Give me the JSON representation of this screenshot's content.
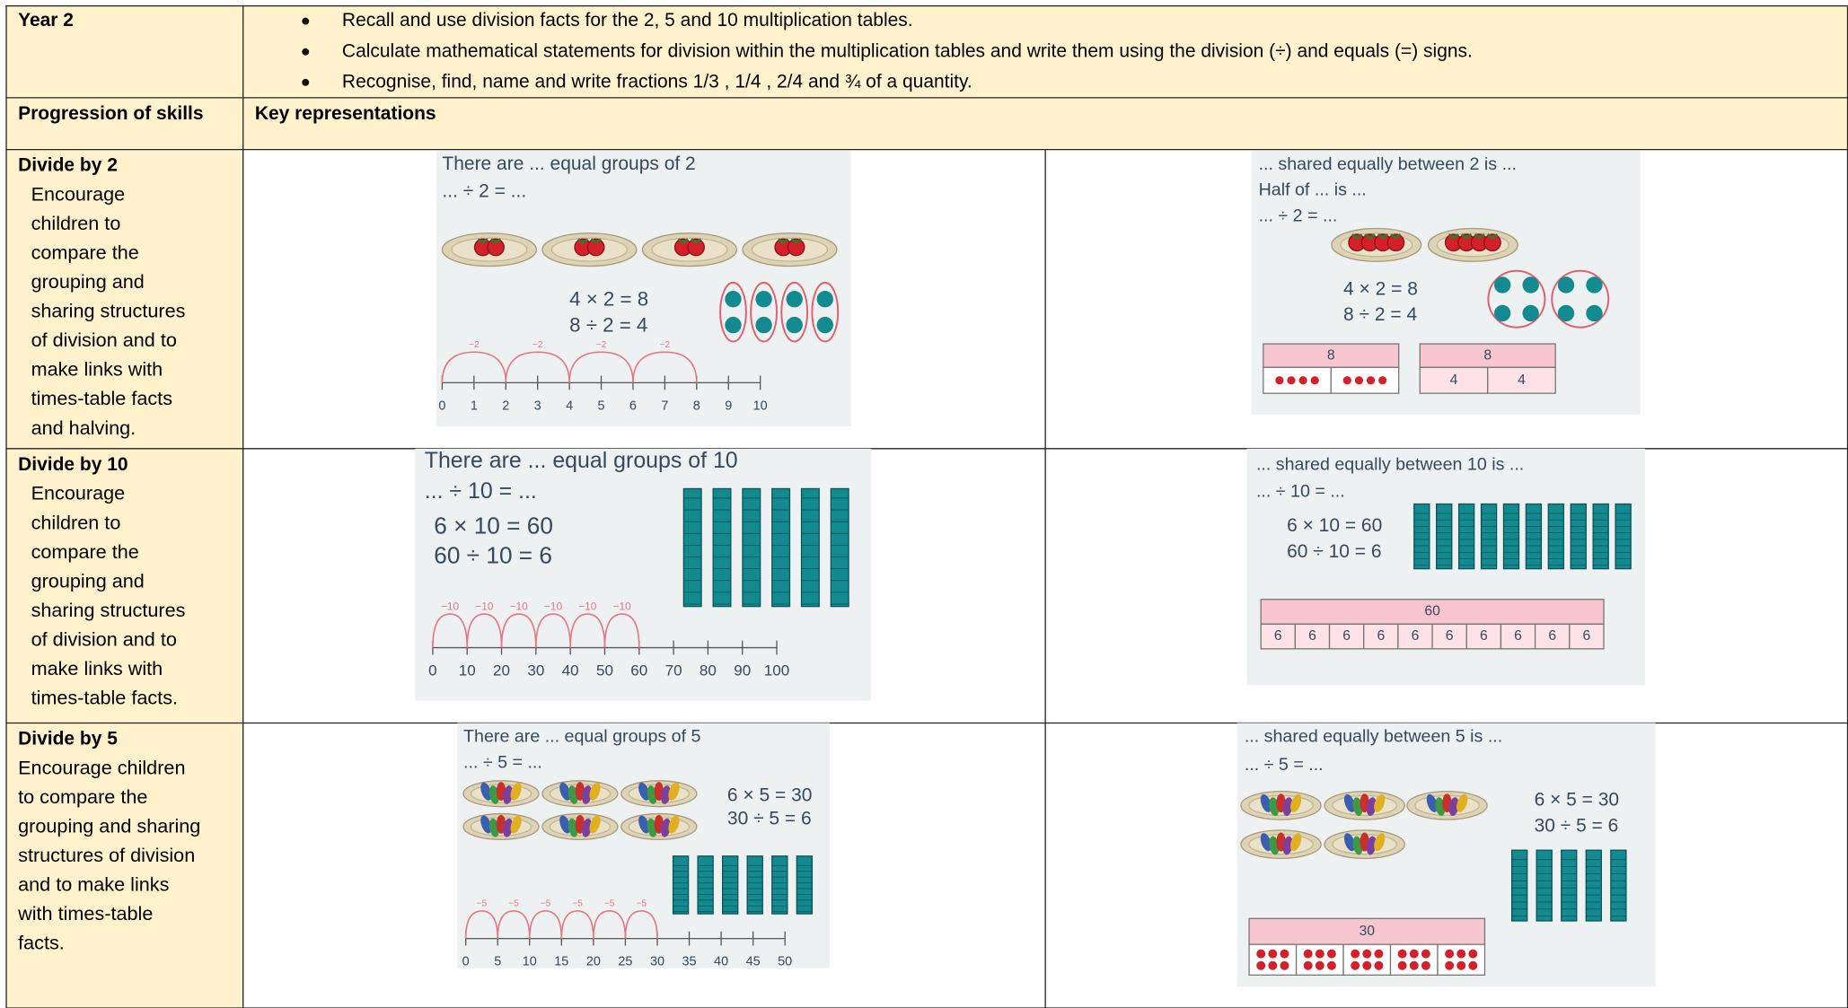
{
  "header": {
    "year": "Year 2",
    "objectives": [
      "Recall and use division facts for the 2, 5 and 10 multiplication tables.",
      "Calculate mathematical statements for division within the multiplication tables and write them using the division (÷) and equals (=) signs.",
      "Recognise, find, name and write fractions 1/3 , 1/4 , 2/4 and ¾ of a quantity."
    ]
  },
  "progression_header": {
    "skills": "Progression of skills",
    "representations": "Key representations"
  },
  "rows": [
    {
      "title": "Divide by 2",
      "text_lines": [
        "Encourage",
        "children to",
        "compare the",
        "grouping and",
        "sharing structures",
        "of division and to",
        "make links with",
        "times-table facts",
        "and halving."
      ],
      "grouping": {
        "lines": [
          "There are ... equal groups of 2",
          "... ÷ 2 = ..."
        ],
        "facts": [
          "4 × 2 = 8",
          "8 ÷ 2 = 4"
        ],
        "number_line": {
          "labels": [
            "0",
            "1",
            "2",
            "3",
            "4",
            "5",
            "6",
            "7",
            "8",
            "9",
            "10"
          ],
          "jumps": [
            "−2",
            "−2",
            "−2",
            "−2"
          ]
        }
      },
      "sharing": {
        "lines": [
          "... shared equally between 2 is ...",
          "Half of ... is ...",
          "... ÷ 2 = ..."
        ],
        "facts": [
          "4 × 2 = 8",
          "8 ÷ 2 = 4"
        ],
        "bars": [
          {
            "whole": "8"
          },
          {
            "whole": "8",
            "parts": [
              "4",
              "4"
            ]
          }
        ]
      }
    },
    {
      "title": "Divide by 10",
      "text_lines": [
        "Encourage",
        "children to",
        "compare the",
        "grouping and",
        "sharing structures",
        "of division and to",
        "make links with",
        "times-table facts."
      ],
      "grouping": {
        "lines": [
          "There are ... equal groups of 10",
          "... ÷ 10 = ..."
        ],
        "facts": [
          "6 × 10 = 60",
          "60 ÷ 10 = 6"
        ],
        "number_line": {
          "labels": [
            "0",
            "10",
            "20",
            "30",
            "40",
            "50",
            "60",
            "70",
            "80",
            "90",
            "100"
          ],
          "jumps": [
            "−10",
            "−10",
            "−10",
            "−10",
            "−10",
            "−10"
          ]
        }
      },
      "sharing": {
        "lines": [
          "... shared equally between 10 is ...",
          "... ÷ 10 = ..."
        ],
        "facts": [
          "6 × 10 = 60",
          "60 ÷ 10 = 6"
        ],
        "bars": [
          {
            "whole": "60",
            "parts": [
              "6",
              "6",
              "6",
              "6",
              "6",
              "6",
              "6",
              "6",
              "6",
              "6"
            ]
          }
        ]
      }
    },
    {
      "title": "Divide by 5",
      "text_lines": [
        "Encourage children",
        "to compare the",
        "grouping and sharing",
        "structures of division",
        "and to make links",
        "with times-table",
        "facts."
      ],
      "grouping": {
        "lines": [
          "There are ... equal groups of 5",
          "... ÷ 5 = ..."
        ],
        "facts": [
          "6 × 5 = 30",
          "30 ÷ 5 = 6"
        ],
        "number_line": {
          "labels": [
            "0",
            "5",
            "10",
            "15",
            "20",
            "25",
            "30",
            "35",
            "40",
            "45",
            "50"
          ],
          "jumps": [
            "−5",
            "−5",
            "−5",
            "−5",
            "−5",
            "−5"
          ]
        }
      },
      "sharing": {
        "lines": [
          "... shared equally between 5 is ...",
          "... ÷ 5 = ..."
        ],
        "facts": [
          "6 × 5 = 30",
          "30 ÷ 5 = 6"
        ],
        "bars": [
          {
            "whole": "30"
          }
        ]
      }
    }
  ]
}
